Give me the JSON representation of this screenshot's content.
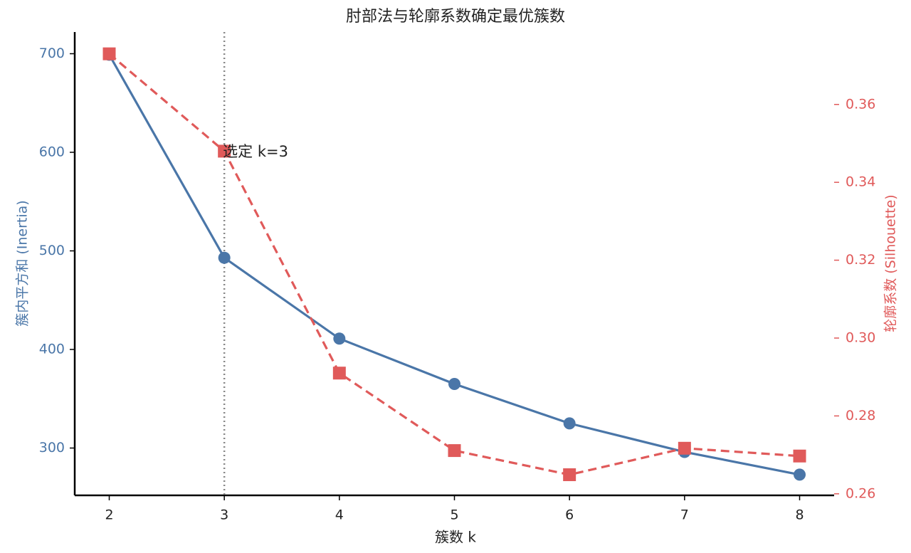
{
  "chart_data": {
    "type": "line",
    "title": "肘部法与轮廓系数确定最优簇数",
    "x_label": "簇数 k",
    "y_label": "簇内平方和 (Inertia)",
    "y2_label": "轮廓系数 (Silhouette)",
    "x": [
      2,
      3,
      4,
      5,
      6,
      7,
      8
    ],
    "xlim": [
      1.7,
      8.3
    ],
    "xticks": [
      2,
      3,
      4,
      5,
      6,
      7,
      8
    ],
    "ylim": [
      252,
      722
    ],
    "yticks": [
      300,
      400,
      500,
      600,
      700
    ],
    "y2lim": [
      0.2596,
      0.3786
    ],
    "y2ticks": [
      0.26,
      0.28,
      {
        "value": 0.3,
        "label": "0.30"
      },
      0.32,
      0.34,
      0.36
    ],
    "series": [
      {
        "name": "Inertia",
        "color": "#4a76a8",
        "marker": "circle",
        "dash": false,
        "values": [
          699,
          493,
          411,
          365,
          325,
          296,
          273
        ]
      },
      {
        "name": "Silhouette",
        "color": "#e05a5a",
        "marker": "square",
        "dash": true,
        "axis": "y2",
        "values": [
          0.373,
          0.348,
          0.291,
          0.2711,
          0.2649,
          0.2717,
          0.2697
        ]
      }
    ],
    "vline": 3,
    "annotation": {
      "text": "选定 k=3",
      "x": 3,
      "y": 600
    }
  }
}
